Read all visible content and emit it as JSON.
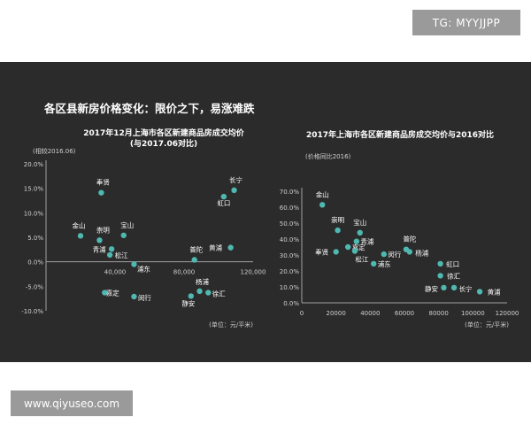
{
  "watermarks": {
    "top": "TG: MYYJJPP",
    "bottom": "www.qiyuseo.com"
  },
  "slide": {
    "title": "各区县新房价格变化：限价之下，易涨难跌"
  },
  "colors": {
    "background": "#2b2b2b",
    "point": "#4fb8b0",
    "text": "#ffffff",
    "muted": "#d0d0d0"
  },
  "chart_data": [
    {
      "type": "scatter",
      "title": "2017年12月上海市各区新建商品房成交均价",
      "subtitle": "(与2017.06对比)",
      "ylabel": "(相较2016.06)",
      "unit_note": "(单位：元/平米)",
      "xlim": [
        0,
        120000
      ],
      "ylim": [
        -10,
        20
      ],
      "xticks": [
        40000,
        80000,
        120000
      ],
      "xtick_labels": [
        "40,000",
        "80,000",
        "120,000"
      ],
      "yticks": [
        -10,
        -5,
        0,
        5,
        10,
        15,
        20
      ],
      "ytick_labels": [
        "-10.0%",
        "-5.0%",
        "0.0%",
        "5.0%",
        "10.0%",
        "15.0%",
        "20.0%"
      ],
      "points": [
        {
          "name": "奉贤",
          "x": 32000,
          "y": 14.1
        },
        {
          "name": "金山",
          "x": 20000,
          "y": 5.3
        },
        {
          "name": "崇明",
          "x": 31000,
          "y": 4.4
        },
        {
          "name": "宝山",
          "x": 45000,
          "y": 5.4
        },
        {
          "name": "青浦",
          "x": 38000,
          "y": 2.6
        },
        {
          "name": "松江",
          "x": 37000,
          "y": 1.4
        },
        {
          "name": "浦东",
          "x": 51000,
          "y": -0.5
        },
        {
          "name": "嘉定",
          "x": 34000,
          "y": -6.3
        },
        {
          "name": "闵行",
          "x": 51000,
          "y": -7.1
        },
        {
          "name": "普陀",
          "x": 86000,
          "y": 0.4
        },
        {
          "name": "杨浦",
          "x": 89000,
          "y": -6.0
        },
        {
          "name": "徐汇",
          "x": 94000,
          "y": -6.3
        },
        {
          "name": "静安",
          "x": 84000,
          "y": -7.0
        },
        {
          "name": "黄浦",
          "x": 107000,
          "y": 2.9
        },
        {
          "name": "虹口",
          "x": 103000,
          "y": 13.3
        },
        {
          "name": "长宁",
          "x": 109000,
          "y": 14.6
        }
      ]
    },
    {
      "type": "scatter",
      "title": "2017年上海市各区新建商品房成交均价与2016对比",
      "ylabel": "(价格同比2016)",
      "unit_note": "(单位：元/平米)",
      "xlim": [
        0,
        120000
      ],
      "ylim": [
        0,
        70
      ],
      "xticks": [
        0,
        20000,
        40000,
        60000,
        80000,
        100000,
        120000
      ],
      "xtick_labels": [
        "0",
        "20000",
        "40000",
        "60000",
        "80000",
        "100000",
        "120000"
      ],
      "yticks": [
        0,
        10,
        20,
        30,
        40,
        50,
        60,
        70
      ],
      "ytick_labels": [
        "0.0%",
        "10.0%",
        "20.0%",
        "30.0%",
        "40.0%",
        "50.0%",
        "60.0%",
        "70.0%"
      ],
      "points": [
        {
          "name": "金山",
          "x": 12000,
          "y": 61.5
        },
        {
          "name": "崇明",
          "x": 21000,
          "y": 45.5
        },
        {
          "name": "宝山",
          "x": 34000,
          "y": 44.0
        },
        {
          "name": "青浦",
          "x": 32000,
          "y": 38.5
        },
        {
          "name": "嘉定",
          "x": 27000,
          "y": 35.0
        },
        {
          "name": "松江",
          "x": 31000,
          "y": 32.5
        },
        {
          "name": "奉贤",
          "x": 20000,
          "y": 32.0
        },
        {
          "name": "闵行",
          "x": 48000,
          "y": 30.5
        },
        {
          "name": "浦东",
          "x": 42000,
          "y": 24.5
        },
        {
          "name": "普陀",
          "x": 61000,
          "y": 33.5
        },
        {
          "name": "杨浦",
          "x": 63000,
          "y": 32.0
        },
        {
          "name": "虹口",
          "x": 81000,
          "y": 24.5
        },
        {
          "name": "徐汇",
          "x": 81000,
          "y": 17.0
        },
        {
          "name": "静安",
          "x": 83000,
          "y": 9.5
        },
        {
          "name": "长宁",
          "x": 89000,
          "y": 9.5
        },
        {
          "name": "黄浦",
          "x": 104000,
          "y": 7.0
        }
      ]
    }
  ]
}
